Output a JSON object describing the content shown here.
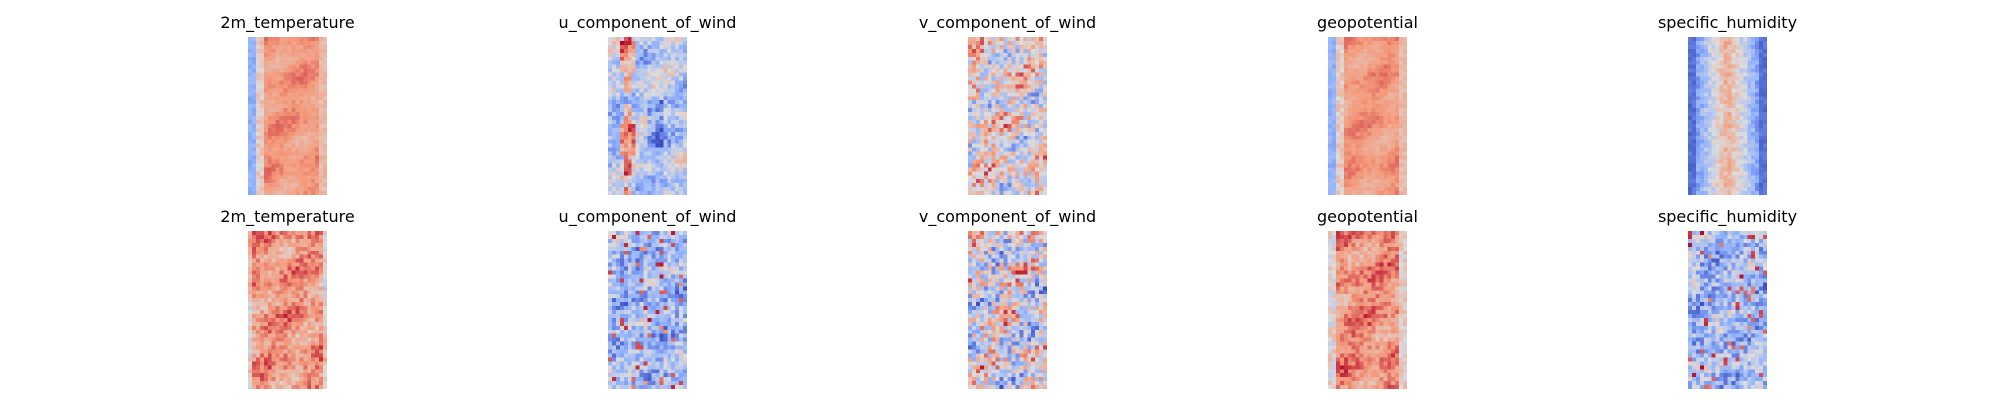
{
  "chart_data": [
    {
      "type": "heatmap",
      "row": 0,
      "col": 0,
      "title": "2m_temperature",
      "colormap": "coolwarm",
      "pattern": "warm-core-cold-left-edge"
    },
    {
      "type": "heatmap",
      "row": 0,
      "col": 1,
      "title": "u_component_of_wind",
      "colormap": "coolwarm",
      "pattern": "mixed-cool-with-red-streaks"
    },
    {
      "type": "heatmap",
      "row": 0,
      "col": 2,
      "title": "v_component_of_wind",
      "colormap": "coolwarm",
      "pattern": "mixed-neutral-speckled"
    },
    {
      "type": "heatmap",
      "row": 0,
      "col": 3,
      "title": "geopotential",
      "colormap": "coolwarm",
      "pattern": "warm-core-cold-left-edge"
    },
    {
      "type": "heatmap",
      "row": 0,
      "col": 4,
      "title": "specific_humidity",
      "colormap": "coolwarm",
      "pattern": "cold-edges-warm-center-stripe"
    },
    {
      "type": "heatmap",
      "row": 1,
      "col": 0,
      "title": "2m_temperature",
      "colormap": "coolwarm",
      "pattern": "warm-noisy"
    },
    {
      "type": "heatmap",
      "row": 1,
      "col": 1,
      "title": "u_component_of_wind",
      "colormap": "coolwarm",
      "pattern": "cool-speckled"
    },
    {
      "type": "heatmap",
      "row": 1,
      "col": 2,
      "title": "v_component_of_wind",
      "colormap": "coolwarm",
      "pattern": "mixed-speckled"
    },
    {
      "type": "heatmap",
      "row": 1,
      "col": 3,
      "title": "geopotential",
      "colormap": "coolwarm",
      "pattern": "warm-noisy-cool-edges"
    },
    {
      "type": "heatmap",
      "row": 1,
      "col": 4,
      "title": "specific_humidity",
      "colormap": "coolwarm",
      "pattern": "cool-speckled"
    }
  ],
  "colors": {
    "deep_blue": "#3b4cc0",
    "light_blue": "#8db0fe",
    "neutral": "#dddcdc",
    "light_red": "#f49a7b",
    "deep_red": "#b40426"
  }
}
